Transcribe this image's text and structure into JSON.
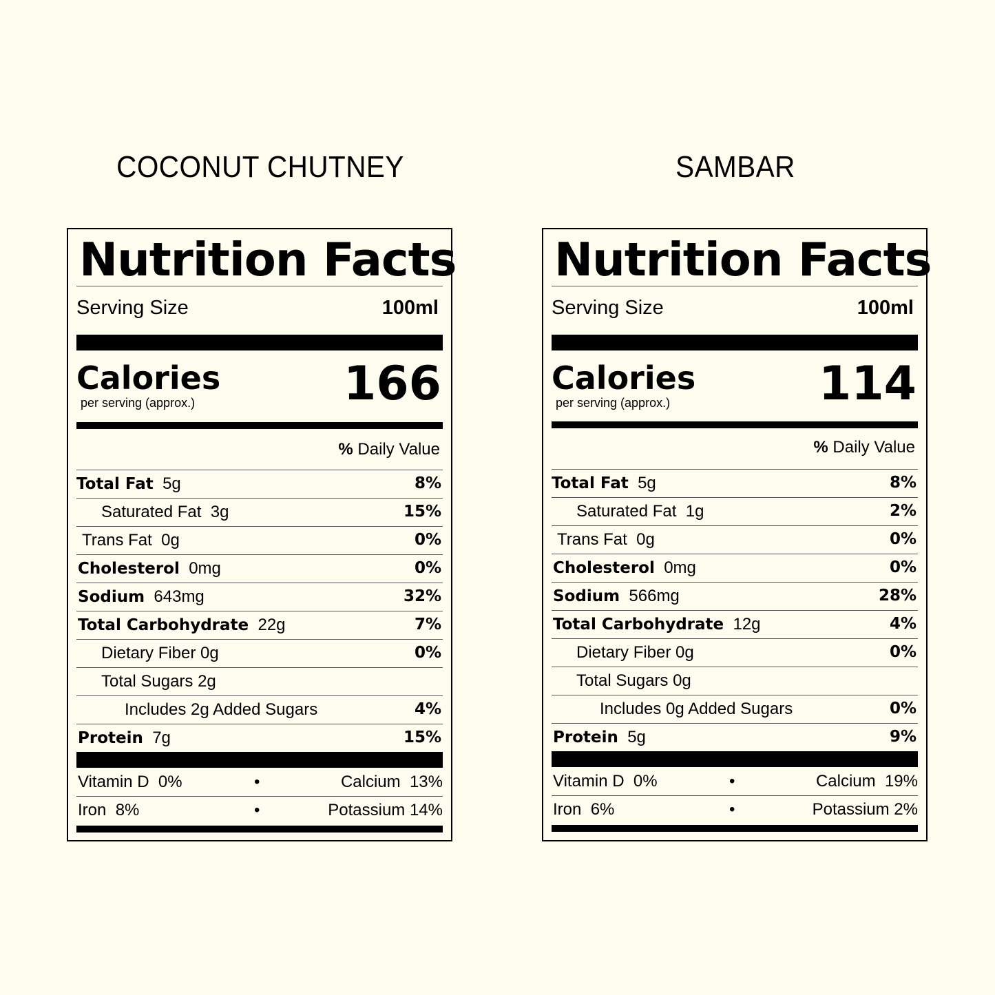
{
  "labels": [
    {
      "product_name": "COCONUT CHUTNEY",
      "title": "Nutrition Facts",
      "serving_size_label": "Serving Size",
      "serving_size_value": "100ml",
      "calories_label": "Calories",
      "calories_sub": "per serving (approx.)",
      "calories_value": "166",
      "daily_value_bold": "%",
      "daily_value_text": " Daily Value",
      "rows": [
        {
          "bold": "Total Fat",
          "text": "  5g",
          "pct": "8%"
        },
        {
          "bold": "",
          "text": "Saturated Fat  3g",
          "pct": "15%"
        },
        {
          "bold": "",
          "text": "Trans Fat  0g",
          "pct": "0%"
        },
        {
          "bold": "Cholesterol",
          "text": "  0mg",
          "pct": "0%"
        },
        {
          "bold": "Sodium",
          "text": "  643mg",
          "pct": "32%"
        },
        {
          "bold": "Total Carbohydrate",
          "text": "  22g",
          "pct": "7%"
        },
        {
          "bold": "",
          "text": "Dietary Fiber 0g",
          "pct": "0%"
        },
        {
          "bold": "",
          "text": "Total Sugars 2g",
          "pct": ""
        },
        {
          "bold": "",
          "text": "Includes 2g Added Sugars",
          "pct": "4%"
        },
        {
          "bold": "Protein",
          "text": "  7g",
          "pct": "15%"
        }
      ],
      "vitamins": [
        {
          "left": "Vitamin D  0%",
          "dot": "•",
          "right": "Calcium  13%"
        },
        {
          "left": "Iron  8%",
          "dot": "•",
          "right": "Potassium 14%"
        }
      ]
    },
    {
      "product_name": "SAMBAR",
      "title": "Nutrition Facts",
      "serving_size_label": "Serving Size",
      "serving_size_value": "100ml",
      "calories_label": "Calories",
      "calories_sub": "per serving (approx.)",
      "calories_value": "114",
      "daily_value_bold": "%",
      "daily_value_text": " Daily Value",
      "rows": [
        {
          "bold": "Total Fat",
          "text": "  5g",
          "pct": "8%"
        },
        {
          "bold": "",
          "text": "Saturated Fat  1g",
          "pct": "2%"
        },
        {
          "bold": "",
          "text": "Trans Fat  0g",
          "pct": "0%"
        },
        {
          "bold": "Cholesterol",
          "text": "  0mg",
          "pct": "0%"
        },
        {
          "bold": "Sodium",
          "text": "  566mg",
          "pct": "28%"
        },
        {
          "bold": "Total Carbohydrate",
          "text": "  12g",
          "pct": "4%"
        },
        {
          "bold": "",
          "text": "Dietary Fiber 0g",
          "pct": "0%"
        },
        {
          "bold": "",
          "text": "Total Sugars 0g",
          "pct": ""
        },
        {
          "bold": "",
          "text": "Includes 0g Added Sugars",
          "pct": "0%"
        },
        {
          "bold": "Protein",
          "text": "  5g",
          "pct": "9%"
        }
      ],
      "vitamins": [
        {
          "left": "Vitamin D  0%",
          "dot": "•",
          "right": "Calcium  19%"
        },
        {
          "left": "Iron  6%",
          "dot": "•",
          "right": "Potassium 2%"
        }
      ]
    }
  ]
}
